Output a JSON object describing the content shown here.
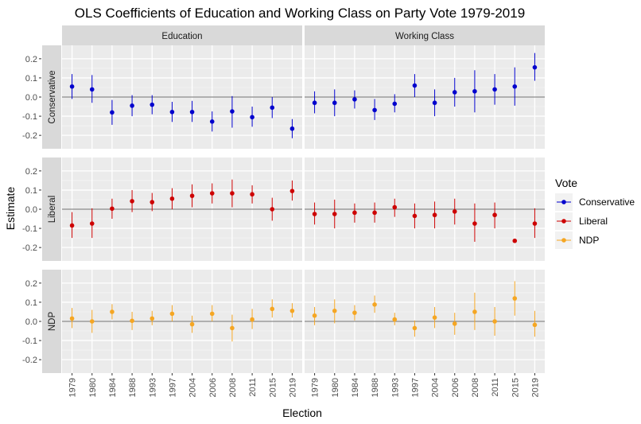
{
  "chart_data": {
    "type": "scatter",
    "title": "OLS Coefficients of Education and Working Class on Party Vote 1979-2019",
    "xlabel": "Election",
    "ylabel": "Estimate",
    "categories": [
      "1979",
      "1980",
      "1984",
      "1988",
      "1993",
      "1997",
      "2004",
      "2006",
      "2008",
      "2011",
      "2015",
      "2019"
    ],
    "ylim": [
      -0.27,
      0.27
    ],
    "yticks": [
      -0.2,
      -0.1,
      0.0,
      0.1,
      0.2
    ],
    "ytick_labels": [
      "-0.2",
      "-0.1",
      "0.0",
      "0.1",
      "0.2"
    ],
    "grid": true,
    "reference_line": 0,
    "facet_columns": [
      "Education",
      "Working Class"
    ],
    "facet_rows": [
      "Conservative",
      "Liberal",
      "NDP"
    ],
    "legend": {
      "title": "Vote",
      "placement": "right",
      "entries": [
        "Conservative",
        "Liberal",
        "NDP"
      ]
    },
    "colors": {
      "Conservative": "#0000cd",
      "Liberal": "#cd0000",
      "NDP": "#f5a623"
    },
    "panels": [
      {
        "row": "Conservative",
        "col": "Education",
        "estimate": [
          0.055,
          0.04,
          -0.08,
          -0.045,
          -0.04,
          -0.078,
          -0.078,
          -0.128,
          -0.075,
          -0.105,
          -0.055,
          -0.165
        ],
        "lower": [
          -0.01,
          -0.03,
          -0.145,
          -0.1,
          -0.09,
          -0.13,
          -0.13,
          -0.18,
          -0.16,
          -0.155,
          -0.11,
          -0.215
        ],
        "upper": [
          0.12,
          0.115,
          -0.015,
          0.01,
          0.01,
          -0.025,
          -0.02,
          -0.075,
          0.005,
          -0.05,
          0.0,
          -0.115
        ]
      },
      {
        "row": "Conservative",
        "col": "Working Class",
        "estimate": [
          -0.03,
          -0.03,
          -0.012,
          -0.068,
          -0.035,
          0.06,
          -0.03,
          0.025,
          0.03,
          0.04,
          0.055,
          0.155
        ],
        "lower": [
          -0.085,
          -0.1,
          -0.06,
          -0.12,
          -0.08,
          0.0,
          -0.1,
          -0.05,
          -0.08,
          -0.04,
          -0.045,
          0.085
        ],
        "upper": [
          0.03,
          0.04,
          0.035,
          -0.01,
          0.015,
          0.12,
          0.04,
          0.1,
          0.14,
          0.12,
          0.155,
          0.23
        ]
      },
      {
        "row": "Liberal",
        "col": "Education",
        "estimate": [
          -0.085,
          -0.075,
          0.003,
          0.042,
          0.037,
          0.055,
          0.07,
          0.083,
          0.083,
          0.078,
          0.0,
          0.095
        ],
        "lower": [
          -0.15,
          -0.15,
          -0.05,
          -0.015,
          -0.01,
          0.0,
          0.01,
          0.03,
          0.01,
          0.03,
          -0.06,
          0.045
        ],
        "upper": [
          -0.015,
          0.005,
          0.055,
          0.1,
          0.085,
          0.11,
          0.13,
          0.135,
          0.155,
          0.125,
          0.06,
          0.15
        ]
      },
      {
        "row": "Liberal",
        "col": "Working Class",
        "estimate": [
          -0.025,
          -0.025,
          -0.018,
          -0.018,
          0.01,
          -0.035,
          -0.03,
          -0.012,
          -0.075,
          -0.03,
          -0.165,
          -0.075
        ],
        "lower": [
          -0.08,
          -0.1,
          -0.07,
          -0.07,
          -0.04,
          -0.1,
          -0.1,
          -0.08,
          -0.17,
          -0.1,
          -0.165,
          -0.15
        ],
        "upper": [
          0.035,
          0.05,
          0.03,
          0.035,
          0.055,
          0.03,
          0.04,
          0.055,
          0.03,
          0.035,
          -0.165,
          0.005
        ]
      },
      {
        "row": "NDP",
        "col": "Education",
        "estimate": [
          0.015,
          0.0,
          0.05,
          0.003,
          0.015,
          0.04,
          -0.015,
          0.04,
          -0.035,
          0.01,
          0.065,
          0.055
        ],
        "lower": [
          -0.035,
          -0.06,
          0.01,
          -0.045,
          -0.02,
          0.0,
          -0.06,
          0.0,
          -0.105,
          -0.04,
          0.02,
          0.02
        ],
        "upper": [
          0.07,
          0.06,
          0.09,
          0.05,
          0.055,
          0.085,
          0.03,
          0.085,
          0.035,
          0.065,
          0.115,
          0.095
        ]
      },
      {
        "row": "NDP",
        "col": "Working Class",
        "estimate": [
          0.03,
          0.055,
          0.045,
          0.088,
          0.01,
          -0.035,
          0.02,
          -0.012,
          0.05,
          0.0,
          0.12,
          -0.018
        ],
        "lower": [
          -0.02,
          -0.01,
          0.005,
          0.045,
          -0.02,
          -0.08,
          -0.035,
          -0.07,
          -0.045,
          -0.075,
          0.03,
          -0.08
        ],
        "upper": [
          0.075,
          0.115,
          0.085,
          0.135,
          0.045,
          0.005,
          0.075,
          0.045,
          0.15,
          0.075,
          0.21,
          0.055
        ]
      }
    ]
  }
}
